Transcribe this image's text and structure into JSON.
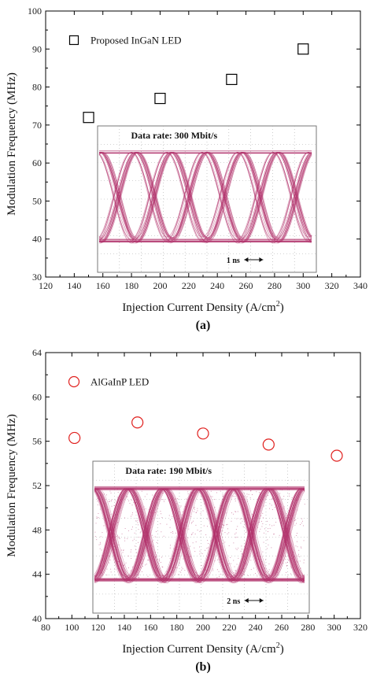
{
  "chart_data": [
    {
      "type": "scatter",
      "panel_label": "(a)",
      "xlabel": "Injection Current Density (A/cm",
      "xlabel_sup": "2",
      "xlabel_end": ")",
      "ylabel": "Modulation Frequency (MHz)",
      "xlim": [
        120,
        340
      ],
      "ylim": [
        30,
        100
      ],
      "xticks": [
        120,
        140,
        160,
        180,
        200,
        220,
        240,
        260,
        280,
        300,
        320,
        340
      ],
      "yticks": [
        30,
        40,
        50,
        60,
        70,
        80,
        90,
        100
      ],
      "series": [
        {
          "name": "Proposed InGaN LED",
          "marker": "square",
          "color": "#000000",
          "x": [
            150,
            200,
            250,
            300
          ],
          "y": [
            72,
            77,
            82,
            90
          ]
        }
      ],
      "legend_position": "top-left",
      "inset": {
        "title": "Data rate: 300 Mbit/s",
        "scale_label": "1 ns",
        "color": "#b0306a"
      }
    },
    {
      "type": "scatter",
      "panel_label": "(b)",
      "xlabel": "Injection Current Density (A/cm",
      "xlabel_sup": "2",
      "xlabel_end": ")",
      "ylabel": "Modulation Frequency (MHz)",
      "xlim": [
        80,
        320
      ],
      "ylim": [
        40,
        64
      ],
      "xticks": [
        80,
        100,
        120,
        140,
        160,
        180,
        200,
        220,
        240,
        260,
        280,
        300,
        320
      ],
      "yticks": [
        40,
        44,
        48,
        52,
        56,
        60,
        64
      ],
      "series": [
        {
          "name": "AlGaInP LED",
          "marker": "circle",
          "color": "#e0201e",
          "x": [
            102,
            150,
            200,
            250,
            302
          ],
          "y": [
            56.3,
            57.7,
            56.7,
            55.7,
            54.7
          ]
        }
      ],
      "legend_position": "top-left",
      "inset": {
        "title": "Data rate: 190 Mbit/s",
        "scale_label": "2 ns",
        "color": "#b0306a"
      }
    }
  ]
}
